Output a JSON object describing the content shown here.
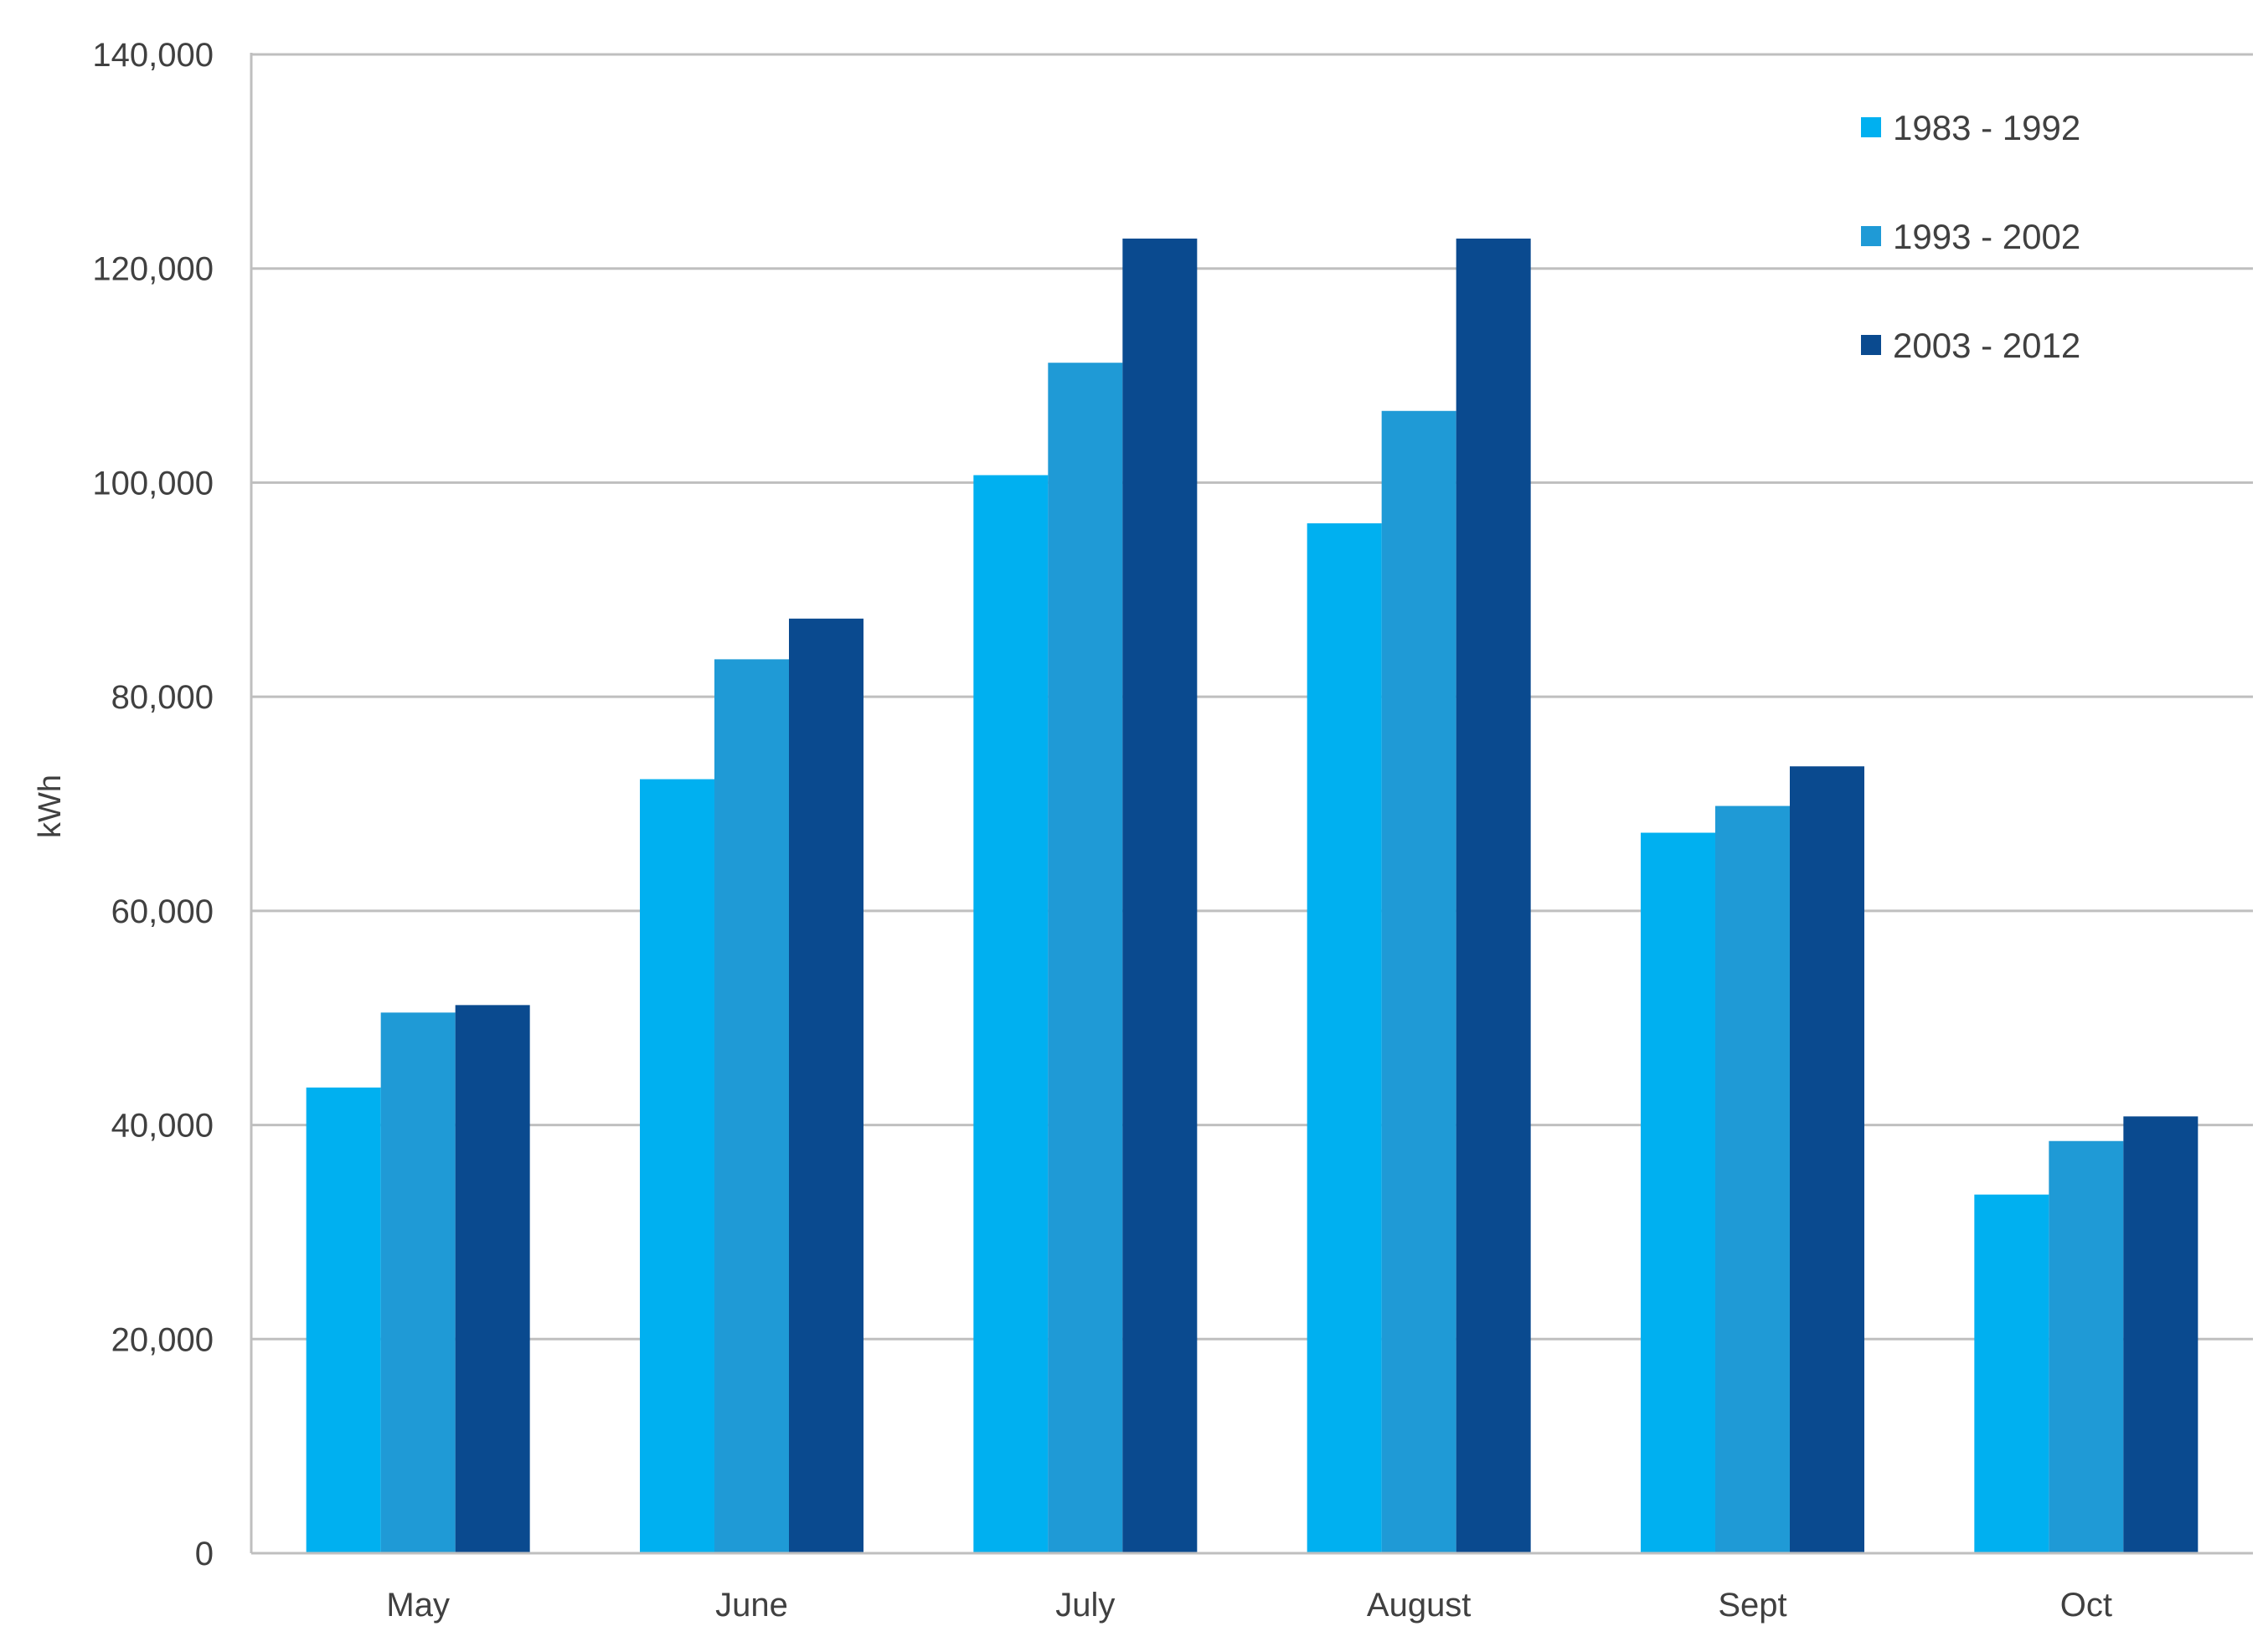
{
  "chart_data": {
    "type": "bar",
    "title": "",
    "xlabel": "",
    "ylabel": "kWh",
    "ylim": [
      0,
      140000
    ],
    "yticks": [
      0,
      20000,
      40000,
      60000,
      80000,
      100000,
      120000,
      140000
    ],
    "ytick_labels": [
      "0",
      "20,000",
      "40,000",
      "60,000",
      "80,000",
      "100,000",
      "120,000",
      "140,000"
    ],
    "grid": true,
    "legend_position": "top-right",
    "categories": [
      "May",
      "June",
      "July",
      "August",
      "Sept",
      "Oct"
    ],
    "series": [
      {
        "name": "1983 - 1992",
        "color": "#00b0f0",
        "values": [
          43500,
          72300,
          100700,
          96200,
          67300,
          33500
        ]
      },
      {
        "name": "1993 - 2002",
        "color": "#1f9ad6",
        "values": [
          50500,
          83500,
          111200,
          106700,
          69800,
          38500
        ]
      },
      {
        "name": "2003 - 2012",
        "color": "#0a4a8f",
        "values": [
          51200,
          87300,
          122800,
          122800,
          73500,
          40800
        ]
      }
    ]
  }
}
